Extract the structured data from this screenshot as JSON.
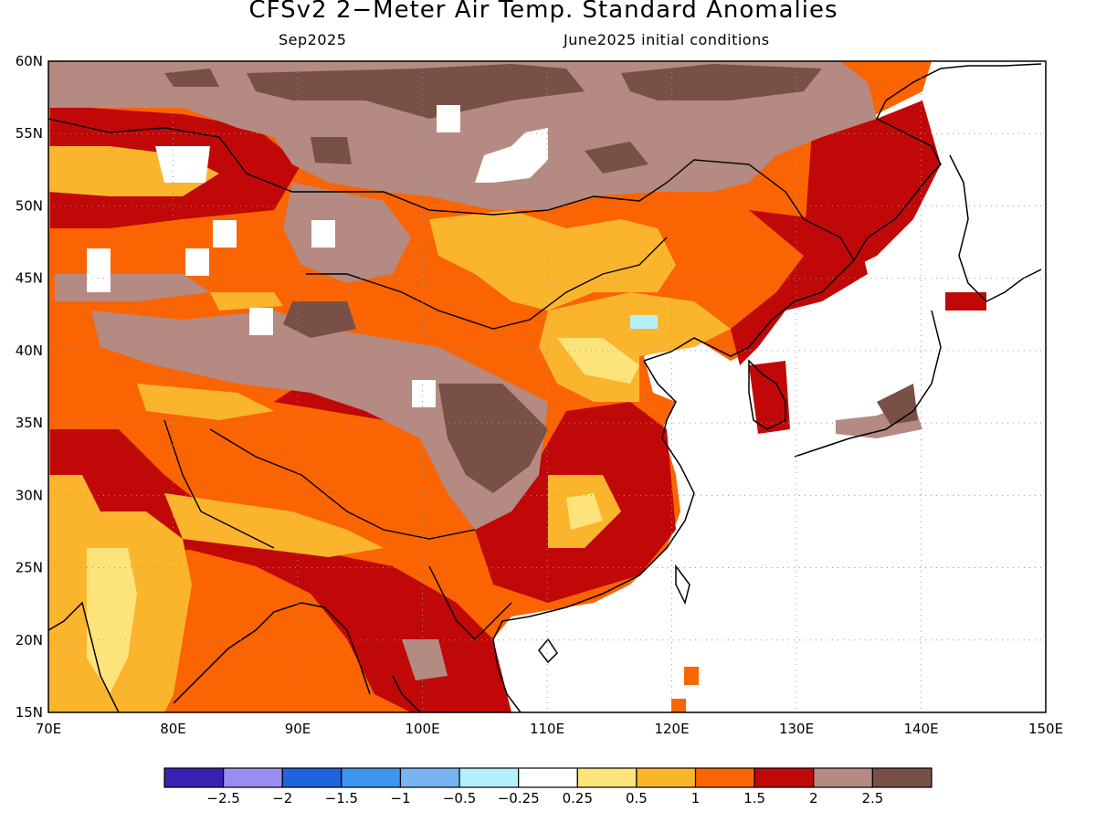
{
  "title": "CFSv2 2−Meter Air Temp. Standard Anomalies",
  "subtitle_left": "Sep2025",
  "subtitle_right": "June2025 initial conditions",
  "map": {
    "lon_range": [
      70,
      150
    ],
    "lat_range": [
      15,
      60
    ],
    "lat_ticks": [
      "15N",
      "20N",
      "25N",
      "30N",
      "35N",
      "40N",
      "45N",
      "50N",
      "55N",
      "60N"
    ],
    "lon_ticks": [
      "70E",
      "80E",
      "90E",
      "100E",
      "110E",
      "120E",
      "130E",
      "140E",
      "150E"
    ],
    "grid": "dotted"
  },
  "colorbar": {
    "colors": [
      "#3a20b0",
      "#9a8df0",
      "#1e64e0",
      "#3c96f0",
      "#78b4f0",
      "#b4f0fa",
      "#ffffff",
      "#fde47a",
      "#fbb52d",
      "#fa6402",
      "#c00808",
      "#b48a82",
      "#785046"
    ],
    "labels": [
      "−2.5",
      "−2",
      "−1.5",
      "−1",
      "−0.5",
      "−0.25",
      "0.25",
      "0.5",
      "1",
      "1.5",
      "2",
      "2.5"
    ]
  }
}
